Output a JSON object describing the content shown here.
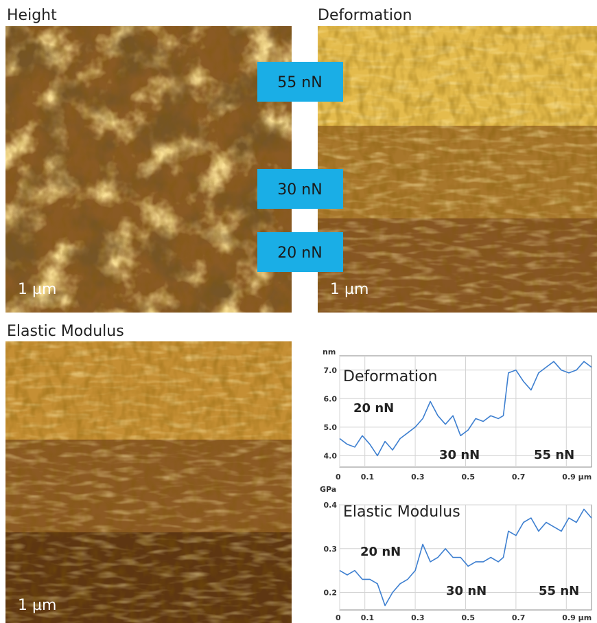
{
  "panels": [
    {
      "title": "Height",
      "scale_bar": "1 µm"
    },
    {
      "title": "Deformation",
      "scale_bar": "1 µm",
      "force_labels": [
        "55 nN",
        "30 nN",
        "20 nN"
      ]
    },
    {
      "title": "Elastic Modulus",
      "scale_bar": "1 µm"
    }
  ],
  "chart_data": [
    {
      "type": "line",
      "title": "Deformation",
      "y_label": "nm",
      "x": [
        0,
        0.03,
        0.06,
        0.09,
        0.12,
        0.15,
        0.18,
        0.21,
        0.24,
        0.27,
        0.3,
        0.33,
        0.36,
        0.39,
        0.42,
        0.45,
        0.48,
        0.51,
        0.54,
        0.57,
        0.6,
        0.63,
        0.65,
        0.67,
        0.7,
        0.73,
        0.76,
        0.79,
        0.82,
        0.85,
        0.88,
        0.91,
        0.94,
        0.97,
        1.0
      ],
      "series": [
        {
          "color": "#3d7fd0",
          "values": [
            4.6,
            4.4,
            4.3,
            4.7,
            4.4,
            4.0,
            4.5,
            4.2,
            4.6,
            4.8,
            5.0,
            5.3,
            5.9,
            5.4,
            5.1,
            5.4,
            4.7,
            4.9,
            5.3,
            5.2,
            5.4,
            5.3,
            5.4,
            6.9,
            7.0,
            6.6,
            6.3,
            6.9,
            7.1,
            7.3,
            7.0,
            6.9,
            7.0,
            7.3,
            7.1
          ]
        }
      ],
      "xlim": [
        0,
        1
      ],
      "ylim": [
        3.6,
        7.5
      ],
      "xticks": [
        0,
        0.1,
        0.3,
        0.5,
        0.7,
        {
          "value": 0.9,
          "label": "0.9 µm"
        }
      ],
      "yticks": [
        {
          "value": 4,
          "label": "4.0"
        },
        {
          "value": 5,
          "label": "5.0"
        },
        {
          "value": 6,
          "label": "6.0"
        },
        {
          "value": 7,
          "label": "7.0"
        }
      ],
      "grid": true,
      "annotations": [
        "20 nN",
        "30 nN",
        "55 nN"
      ]
    },
    {
      "type": "line",
      "title": "Elastic Modulus",
      "y_label": "GPa",
      "x": [
        0,
        0.03,
        0.06,
        0.09,
        0.12,
        0.15,
        0.18,
        0.21,
        0.24,
        0.27,
        0.3,
        0.33,
        0.36,
        0.39,
        0.42,
        0.45,
        0.48,
        0.51,
        0.54,
        0.57,
        0.6,
        0.63,
        0.65,
        0.67,
        0.7,
        0.73,
        0.76,
        0.79,
        0.82,
        0.85,
        0.88,
        0.91,
        0.94,
        0.97,
        1.0
      ],
      "series": [
        {
          "color": "#3d7fd0",
          "values": [
            0.25,
            0.24,
            0.25,
            0.23,
            0.23,
            0.22,
            0.17,
            0.2,
            0.22,
            0.23,
            0.25,
            0.31,
            0.27,
            0.28,
            0.3,
            0.28,
            0.28,
            0.26,
            0.27,
            0.27,
            0.28,
            0.27,
            0.28,
            0.34,
            0.33,
            0.36,
            0.37,
            0.34,
            0.36,
            0.35,
            0.34,
            0.37,
            0.36,
            0.39,
            0.37
          ]
        }
      ],
      "xlim": [
        0,
        1
      ],
      "ylim": [
        0.16,
        0.4
      ],
      "xticks": [
        0,
        0.1,
        0.3,
        0.5,
        0.7,
        {
          "value": 0.9,
          "label": "0.9 µm"
        }
      ],
      "yticks": [
        0.2,
        0.3,
        0.4
      ],
      "grid": true,
      "annotations": [
        "20 nN",
        "30 nN",
        "55 nN"
      ]
    }
  ]
}
